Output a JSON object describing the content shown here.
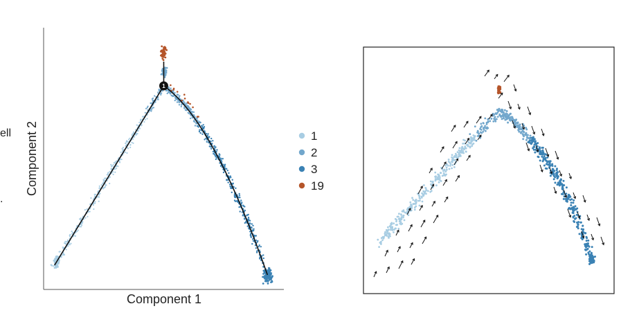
{
  "edge_fragments": [
    "ell",
    "."
  ],
  "chart_data": [
    {
      "type": "scatter",
      "title": "",
      "xlabel": "Component 1",
      "ylabel": "Component 2",
      "grid": false,
      "legend_position": "right",
      "legend": [
        "1",
        "2",
        "3",
        "19"
      ],
      "colors": {
        "1": "#a8cde3",
        "2": "#72a7cc",
        "3": "#3b82b4",
        "19": "#b5552a"
      },
      "branch_node_label": "1",
      "trajectory": [
        {
          "x": -1.0,
          "y": -0.95
        },
        {
          "x": 0.0,
          "y": 0.9
        },
        {
          "x": 0.0,
          "y": 1.15
        },
        {
          "x": 0.0,
          "y": 0.9
        },
        {
          "x": 0.45,
          "y": 0.55
        },
        {
          "x": 0.95,
          "y": -1.05
        }
      ],
      "xlim": [
        -1.1,
        1.1
      ],
      "ylim": [
        -1.2,
        1.5
      ]
    },
    {
      "type": "scatter",
      "title": "",
      "xlabel": "",
      "ylabel": "",
      "grid": false,
      "overlay": "velocity arrows",
      "series_colors": [
        "#a8cde3",
        "#72a7cc",
        "#3b82b4",
        "#b5552a"
      ]
    }
  ]
}
